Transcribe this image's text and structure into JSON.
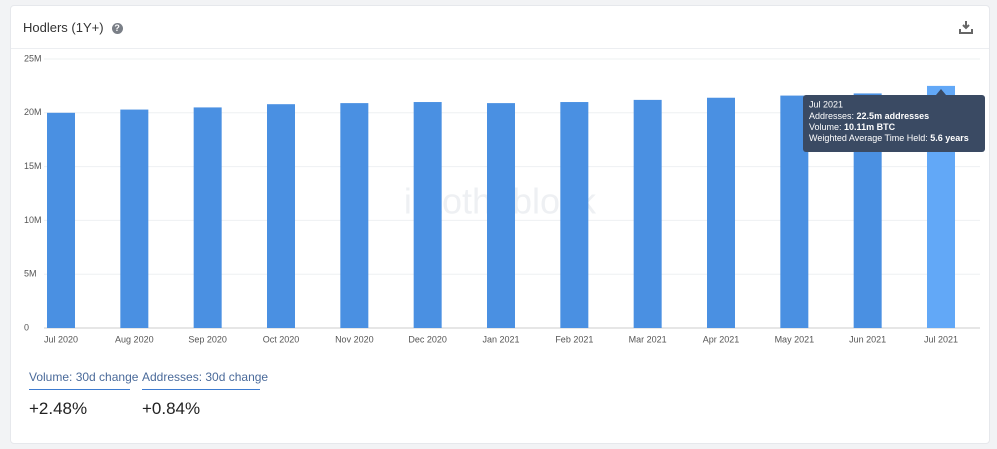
{
  "header": {
    "title": "Hodlers (1Y+)"
  },
  "chart_data": {
    "type": "bar",
    "categories": [
      "Jul 2020",
      "Aug 2020",
      "Sep 2020",
      "Oct 2020",
      "Nov 2020",
      "Dec 2020",
      "Jan 2021",
      "Feb 2021",
      "Mar 2021",
      "Apr 2021",
      "May 2021",
      "Jun 2021",
      "Jul 2021"
    ],
    "values": [
      20000000,
      20300000,
      20500000,
      20800000,
      20900000,
      21000000,
      20900000,
      21000000,
      21200000,
      21400000,
      21600000,
      21800000,
      22500000
    ],
    "colors": [
      "#4a90e2",
      "#4a90e2",
      "#4a90e2",
      "#4a90e2",
      "#4a90e2",
      "#4a90e2",
      "#4a90e2",
      "#4a90e2",
      "#4a90e2",
      "#4a90e2",
      "#4a90e2",
      "#4a90e2",
      "#62a8f7"
    ],
    "ylim": [
      0,
      25000000
    ],
    "yticks": [
      0,
      {
        "value": 5000000,
        "label": "5M"
      },
      {
        "value": 10000000,
        "label": "10M"
      },
      {
        "value": 15000000,
        "label": "15M"
      },
      {
        "value": 20000000,
        "label": "20M"
      },
      {
        "value": 25000000,
        "label": "25M"
      }
    ],
    "grid": true,
    "watermark": "intotheblock",
    "tooltip": {
      "title": "Jul 2021",
      "lines": [
        {
          "label": "Addresses:",
          "value": "22.5m addresses"
        },
        {
          "label": "Volume:",
          "value": "10.11m BTC"
        },
        {
          "label": "Weighted Average Time Held:",
          "value": "5.6 years"
        }
      ]
    }
  },
  "stats": [
    {
      "label": "Volume: 30d change",
      "value": "+2.48%"
    },
    {
      "label": "Addresses: 30d change",
      "value": "+0.84%"
    }
  ]
}
